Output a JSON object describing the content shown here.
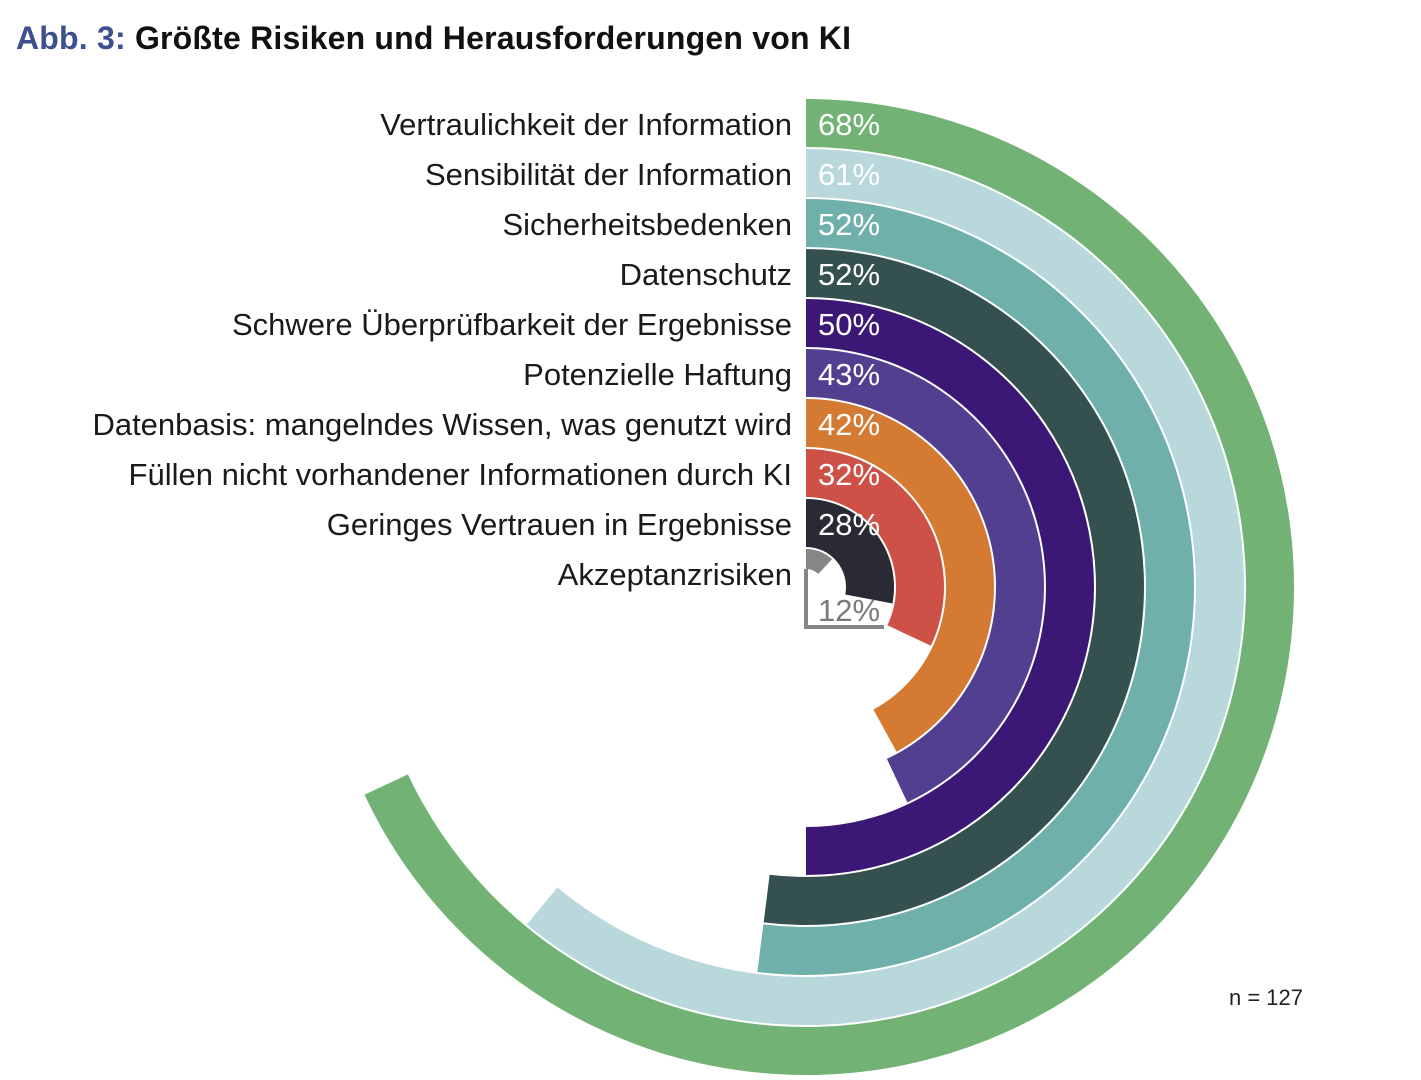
{
  "title": {
    "prefix": "Abb. 3:",
    "text": "Größte Risiken und Herausforderungen von KI"
  },
  "note": "n = 127",
  "chart_data": {
    "type": "radial-bar",
    "title": "Größte Risiken und Herausforderungen von KI",
    "unit": "%",
    "categories": [
      "Vertraulichkeit der Information",
      "Sensibilität der Information",
      "Sicherheitsbedenken",
      "Datenschutz",
      "Schwere Überprüfbarkeit der Ergebnisse",
      "Potenzielle Haftung",
      "Datenbasis: mangelndes Wissen, was genutzt wird",
      "Füllen nicht vorhandener Informationen durch KI",
      "Geringes Vertrauen in Ergebnisse",
      "Akzeptanzrisiken"
    ],
    "values": [
      68,
      61,
      52,
      52,
      50,
      43,
      42,
      32,
      28,
      12
    ],
    "value_labels": [
      "68%",
      "61%",
      "52%",
      "52%",
      "50%",
      "43%",
      "42%",
      "32%",
      "28%",
      "12%"
    ],
    "colors": [
      "#72b274",
      "#b8d8dc",
      "#70b0ab",
      "#345150",
      "#3b1876",
      "#523f8f",
      "#d47a33",
      "#cd5147",
      "#2a2a35",
      "#868686"
    ],
    "label_colors": [
      "#ffffff",
      "#ffffff",
      "#ffffff",
      "#ffffff",
      "#ffffff",
      "#ffffff",
      "#ffffff",
      "#ffffff",
      "#ffffff",
      "#7a7a7a"
    ]
  }
}
